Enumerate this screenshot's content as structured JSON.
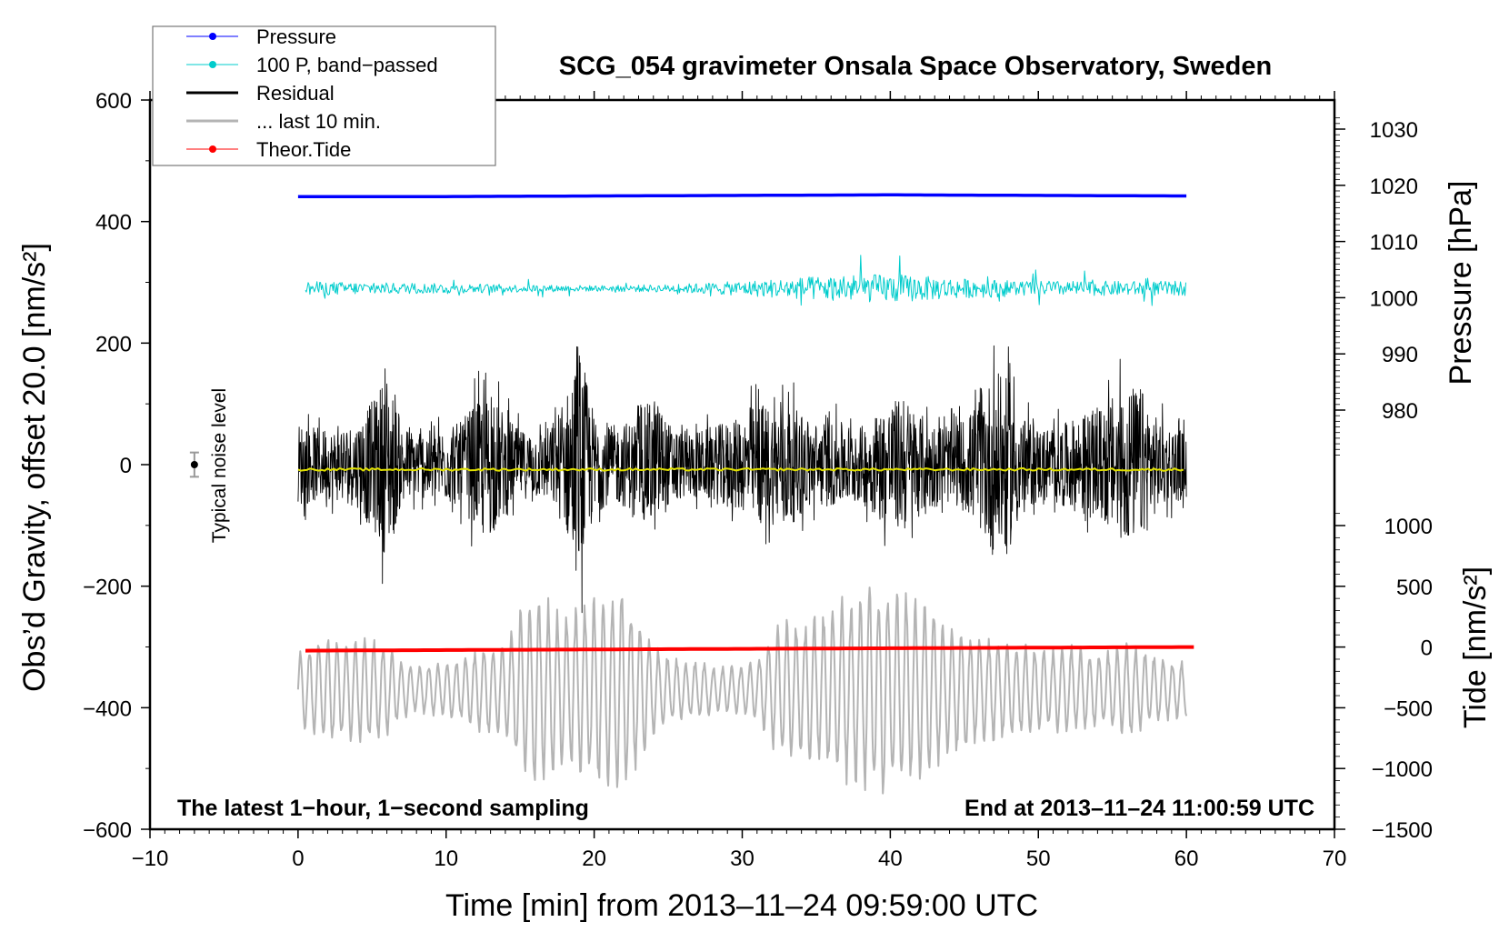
{
  "chart_data": {
    "type": "line",
    "title": "SCG_054 gravimeter Onsala Space Observatory, Sweden",
    "xlabel": "Time [min] from 2013–11–24 09:59:00 UTC",
    "ylabel": "Obs’d Gravity, offset 20.0 [nm/s²]",
    "ylabel_right_top": "Pressure [hPa]",
    "ylabel_right_bottom": "Tide [nm/s²]",
    "xlim": [
      -10,
      70
    ],
    "ylim": [
      -600,
      600
    ],
    "pressure_lim": [
      980,
      1030
    ],
    "tide_lim": [
      -1500,
      1000
    ],
    "xticks": [
      -10,
      0,
      10,
      20,
      30,
      40,
      50,
      60,
      70
    ],
    "xtick_labels": [
      "−10",
      "0",
      "10",
      "20",
      "30",
      "40",
      "50",
      "60",
      "70"
    ],
    "yticks": [
      -600,
      -400,
      -200,
      0,
      200,
      400,
      600
    ],
    "ytick_labels": [
      "−600",
      "−400",
      "−200",
      "0",
      "200",
      "400",
      "600"
    ],
    "pressure_ticks": [
      980,
      990,
      1000,
      1010,
      1020,
      1030
    ],
    "pressure_tick_labels": [
      "980",
      "990",
      "1000",
      "1010",
      "1020",
      "1030"
    ],
    "tide_ticks": [
      -1500,
      -1000,
      -500,
      0,
      500,
      1000
    ],
    "tide_tick_labels": [
      "−1500",
      "−1000",
      "−500",
      "0",
      "500",
      "1000"
    ],
    "legend_position": "top-left",
    "legend": [
      {
        "label": "Pressure",
        "color": "#0000ff",
        "marker": "dot"
      },
      {
        "label": "100 P, band−passed",
        "color": "#00cccc",
        "marker": "dot"
      },
      {
        "label": "Residual",
        "color": "#000000",
        "marker": "line"
      },
      {
        "label": "... last 10 min.",
        "color": "#b4b4b4",
        "marker": "line"
      },
      {
        "label": "Theor.Tide",
        "color": "#ff0000",
        "marker": "dot"
      }
    ],
    "series": [
      {
        "name": "Pressure",
        "axis": "pressure",
        "color": "#0000ff",
        "x_range": [
          0,
          60
        ],
        "values_hpa_per_10min": [
          1018.0,
          1018.0,
          1018.1,
          1018.2,
          1018.3,
          1018.2,
          1018.1
        ]
      },
      {
        "name": "100 P, band-passed",
        "axis": "gravity",
        "color": "#00cccc",
        "x_range": [
          0,
          60
        ],
        "center": 290,
        "amplitude_envelope_per_5min": [
          15,
          12,
          10,
          8,
          6,
          8,
          15,
          25,
          30,
          20,
          15,
          15,
          15
        ]
      },
      {
        "name": "Residual",
        "axis": "gravity",
        "color": "#000000",
        "x_range": [
          0,
          60
        ],
        "center": 0,
        "amplitude_envelope_per_min": [
          100,
          90,
          80,
          90,
          100,
          150,
          220,
          90,
          80,
          80,
          90,
          100,
          150,
          170,
          120,
          80,
          80,
          90,
          150,
          280,
          120,
          90,
          100,
          110,
          170,
          100,
          80,
          80,
          90,
          100,
          110,
          150,
          140,
          150,
          120,
          100,
          100,
          100,
          90,
          120,
          150,
          160,
          120,
          100,
          90,
          110,
          150,
          220,
          200,
          110,
          90,
          90,
          100,
          120,
          130,
          160,
          190,
          180,
          110,
          90,
          80
        ]
      },
      {
        "name": "Residual smoothed",
        "axis": "gravity",
        "color": "#e0e000",
        "x_range": [
          0,
          60
        ],
        "value": -8
      },
      {
        "name": "... last 10 min.",
        "axis": "gravity",
        "color": "#b4b4b4",
        "x_range": [
          0,
          60
        ],
        "center": -370,
        "amplitude_envelope_per_min": [
          60,
          80,
          90,
          90,
          90,
          90,
          80,
          50,
          40,
          45,
          50,
          50,
          70,
          80,
          80,
          140,
          160,
          150,
          140,
          150,
          160,
          170,
          170,
          130,
          80,
          60,
          50,
          50,
          40,
          40,
          40,
          50,
          100,
          120,
          110,
          130,
          150,
          160,
          170,
          190,
          180,
          170,
          150,
          140,
          120,
          100,
          90,
          90,
          80,
          80,
          70,
          70,
          80,
          70,
          60,
          70,
          80,
          70,
          60,
          50,
          50
        ]
      },
      {
        "name": "Theor.Tide",
        "axis": "tide",
        "color": "#ff0000",
        "x_range": [
          0,
          60.5
        ],
        "values_per_10min": [
          -30,
          -25,
          -20,
          -15,
          -10,
          -5,
          0
        ]
      }
    ],
    "noise_marker": {
      "label": "Typical noise level",
      "x": -7,
      "y": 0,
      "error": 20
    },
    "annotations": {
      "bottom_left": "The latest 1−hour, 1−second sampling",
      "bottom_right": "End at 2013–11–24 11:00:59 UTC"
    }
  }
}
